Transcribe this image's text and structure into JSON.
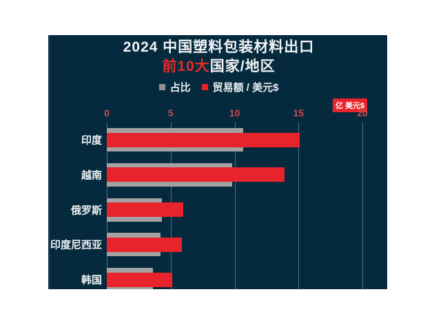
{
  "chart_data": {
    "type": "bar",
    "orientation": "horizontal",
    "title": "2024 中国塑料包装材料出口",
    "subtitle": {
      "highlight": "前10大",
      "rest": "国家/地区"
    },
    "legend": [
      {
        "label": "占比",
        "color": "#909090"
      },
      {
        "label": "贸易额 / 美元$",
        "color": "#e7232b"
      }
    ],
    "unit_badge": "亿 美元$",
    "x_ticks": [
      0,
      5,
      10,
      15,
      20
    ],
    "xlim": [
      0,
      20
    ],
    "grid": "vertical-on",
    "legend_position": "top-center",
    "categories": [
      "印度",
      "越南",
      "俄罗斯",
      "印度尼西亚",
      "韩国"
    ],
    "series": [
      {
        "name": "贸易额 / 美元$",
        "color": "#e7232b",
        "values": [
          15.1,
          13.9,
          6.0,
          5.9,
          5.1
        ]
      },
      {
        "name": "占比",
        "color": "#a2a2a2",
        "values": [
          10.7,
          9.8,
          4.3,
          4.2,
          3.6
        ]
      }
    ],
    "colors": {
      "panel_bg": "#052a3d",
      "tick_label": "#d14a50",
      "title_highlight": "#e62a2a",
      "badge_bg": "#e7232b",
      "text": "#f2f4f6"
    }
  }
}
